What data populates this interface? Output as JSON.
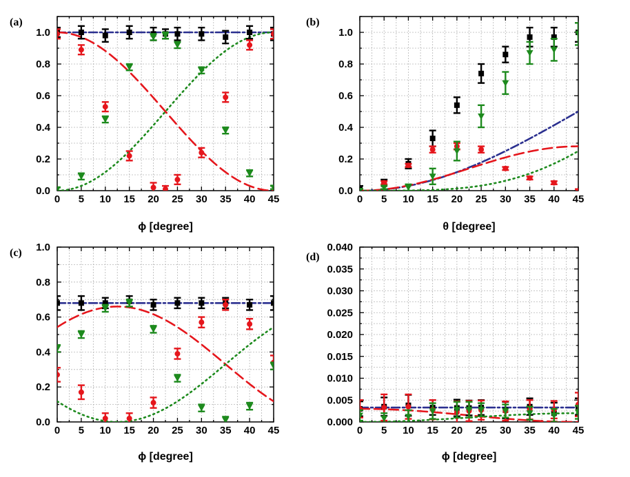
{
  "chart_data": [
    {
      "type": "line",
      "panel_label": "(a)",
      "xlabel": "ϕ [degree]",
      "ylabel": "",
      "xlim": [
        0,
        45
      ],
      "ylim": [
        0,
        1.1
      ],
      "xticks": [
        0,
        5,
        10,
        15,
        20,
        25,
        30,
        35,
        40,
        45
      ],
      "yticks": [
        0.0,
        0.2,
        0.4,
        0.6,
        0.8,
        1.0
      ],
      "ytick_labels": [
        "0.0",
        "0.2",
        "0.4",
        "0.6",
        "0.8",
        "1.0"
      ],
      "grid": true,
      "series": [
        {
          "name": "blue fit",
          "color": "#2a2f8f",
          "style": "dashdot",
          "kind": "curve",
          "func": "const",
          "a": 1.0
        },
        {
          "name": "black data",
          "color": "#000000",
          "marker": "square",
          "x": [
            0,
            5,
            10,
            15,
            20,
            22.5,
            25,
            30,
            35,
            40,
            45
          ],
          "y": [
            1.0,
            1.0,
            0.98,
            1.0,
            0.99,
            0.99,
            0.99,
            0.99,
            0.97,
            1.0,
            0.99
          ],
          "err": [
            0.03,
            0.04,
            0.04,
            0.04,
            0.04,
            0.03,
            0.04,
            0.04,
            0.04,
            0.04,
            0.04
          ]
        },
        {
          "name": "red fit",
          "color": "#e5161c",
          "style": "dash",
          "kind": "curve",
          "func": "cos2",
          "a": 1.0,
          "b": 0.0,
          "k": 4,
          "p": 0
        },
        {
          "name": "red data",
          "color": "#e5161c",
          "marker": "circle",
          "x": [
            0,
            5,
            10,
            15,
            20,
            22.5,
            25,
            30,
            35,
            40,
            45
          ],
          "y": [
            0.99,
            0.89,
            0.53,
            0.22,
            0.02,
            0.01,
            0.07,
            0.24,
            0.59,
            0.92,
            0.99
          ],
          "err": [
            0.03,
            0.03,
            0.03,
            0.03,
            0.03,
            0.02,
            0.03,
            0.03,
            0.03,
            0.03,
            0.03
          ]
        },
        {
          "name": "green fit",
          "color": "#1d8a1d",
          "style": "dot",
          "kind": "curve",
          "func": "sin2",
          "a": 1.0,
          "b": 0.0,
          "k": 4,
          "p": 0
        },
        {
          "name": "green data",
          "color": "#1d8a1d",
          "marker": "triangle-down",
          "x": [
            0,
            5,
            10,
            15,
            20,
            22.5,
            25,
            30,
            35,
            40,
            45
          ],
          "y": [
            0.01,
            0.09,
            0.45,
            0.78,
            0.97,
            0.98,
            0.92,
            0.76,
            0.38,
            0.11,
            0.02
          ],
          "err": [
            0.01,
            0.02,
            0.02,
            0.02,
            0.02,
            0.02,
            0.02,
            0.02,
            0.02,
            0.02,
            0.01
          ]
        }
      ]
    },
    {
      "type": "line",
      "panel_label": "(b)",
      "xlabel": "θ [degree]",
      "ylabel": "",
      "xlim": [
        0,
        45
      ],
      "ylim": [
        0,
        1.1
      ],
      "xticks": [
        0,
        5,
        10,
        15,
        20,
        25,
        30,
        35,
        40,
        45
      ],
      "yticks": [
        0.0,
        0.2,
        0.4,
        0.6,
        0.8,
        1.0
      ],
      "ytick_labels": [
        "0.0",
        "0.2",
        "0.4",
        "0.6",
        "0.8",
        "1.0"
      ],
      "grid": true,
      "series": [
        {
          "name": "blue fit",
          "color": "#2a2f8f",
          "style": "dashdot",
          "kind": "curve",
          "func": "sin2",
          "a": 1.0,
          "b": 0.0,
          "k": 2,
          "p": 0
        },
        {
          "name": "black data",
          "color": "#000000",
          "marker": "square",
          "x": [
            0,
            5,
            10,
            15,
            20,
            25,
            30,
            35,
            40,
            45
          ],
          "y": [
            0.01,
            0.04,
            0.17,
            0.33,
            0.54,
            0.74,
            0.86,
            0.97,
            0.97,
            1.0
          ],
          "err": [
            0.02,
            0.03,
            0.03,
            0.05,
            0.05,
            0.06,
            0.05,
            0.06,
            0.06,
            0.06
          ]
        },
        {
          "name": "red fit",
          "color": "#e5161c",
          "style": "dash",
          "kind": "curve",
          "func": "sin2",
          "a": 0.28,
          "b": 0.0,
          "k": 4,
          "p": 0
        },
        {
          "name": "red data",
          "color": "#e5161c",
          "marker": "circle",
          "x": [
            0,
            5,
            10,
            15,
            20,
            25,
            30,
            35,
            40,
            45
          ],
          "y": [
            0.0,
            0.05,
            0.16,
            0.26,
            0.28,
            0.26,
            0.14,
            0.08,
            0.05,
            0.0
          ],
          "err": [
            0.01,
            0.01,
            0.01,
            0.02,
            0.02,
            0.02,
            0.01,
            0.01,
            0.01,
            0.01
          ]
        },
        {
          "name": "green fit",
          "color": "#1d8a1d",
          "style": "dot",
          "kind": "curve",
          "func": "sin4",
          "a": 1.0,
          "b": 0.0,
          "k": 2,
          "p": 0
        },
        {
          "name": "green data",
          "color": "#1d8a1d",
          "marker": "triangle-down",
          "x": [
            0,
            5,
            10,
            15,
            20,
            25,
            30,
            35,
            40,
            45
          ],
          "y": [
            0.0,
            0.02,
            0.02,
            0.09,
            0.25,
            0.47,
            0.68,
            0.87,
            0.89,
            0.99
          ],
          "err": [
            0.01,
            0.01,
            0.02,
            0.05,
            0.06,
            0.07,
            0.07,
            0.07,
            0.07,
            0.07
          ]
        }
      ]
    },
    {
      "type": "line",
      "panel_label": "(c)",
      "xlabel": "ϕ [degree]",
      "ylabel": "",
      "xlim": [
        0,
        45
      ],
      "ylim": [
        0,
        1.0
      ],
      "xticks": [
        0,
        5,
        10,
        15,
        20,
        25,
        30,
        35,
        40,
        45
      ],
      "yticks": [
        0.0,
        0.2,
        0.4,
        0.6,
        0.8,
        1.0
      ],
      "ytick_labels": [
        "0.0",
        "0.2",
        "0.4",
        "0.6",
        "0.8",
        "1.0"
      ],
      "grid": true,
      "series": [
        {
          "name": "blue fit",
          "color": "#2a2f8f",
          "style": "dashdot",
          "kind": "curve",
          "func": "const",
          "a": 0.68
        },
        {
          "name": "black data",
          "color": "#000000",
          "marker": "square",
          "x": [
            0,
            5,
            10,
            15,
            20,
            25,
            30,
            35,
            40,
            45
          ],
          "y": [
            0.68,
            0.68,
            0.68,
            0.69,
            0.67,
            0.68,
            0.68,
            0.68,
            0.67,
            0.68
          ],
          "err": [
            0.04,
            0.04,
            0.03,
            0.03,
            0.03,
            0.03,
            0.03,
            0.03,
            0.03,
            0.04
          ]
        },
        {
          "name": "red fit",
          "color": "#e5161c",
          "style": "dash",
          "kind": "curve",
          "func": "cos2",
          "a": 0.66,
          "b": 0.0,
          "k": 4,
          "p": 12.5
        },
        {
          "name": "red data",
          "color": "#e5161c",
          "marker": "circle",
          "x": [
            0,
            5,
            10,
            15,
            20,
            25,
            30,
            35,
            40,
            45
          ],
          "y": [
            0.27,
            0.17,
            0.02,
            0.02,
            0.11,
            0.39,
            0.57,
            0.67,
            0.56,
            0.34
          ],
          "err": [
            0.04,
            0.04,
            0.03,
            0.03,
            0.03,
            0.03,
            0.03,
            0.03,
            0.03,
            0.04
          ]
        },
        {
          "name": "green fit",
          "color": "#1d8a1d",
          "style": "dot",
          "kind": "curve",
          "func": "sin2",
          "a": 0.66,
          "b": 0.0,
          "k": 4,
          "p": 12.5
        },
        {
          "name": "green data",
          "color": "#1d8a1d",
          "marker": "triangle-down",
          "x": [
            0,
            5,
            10,
            15,
            20,
            25,
            30,
            35,
            40,
            45
          ],
          "y": [
            0.42,
            0.5,
            0.65,
            0.68,
            0.53,
            0.25,
            0.08,
            0.01,
            0.09,
            0.32
          ],
          "err": [
            0.02,
            0.02,
            0.02,
            0.02,
            0.02,
            0.02,
            0.02,
            0.02,
            0.02,
            0.02
          ]
        }
      ]
    },
    {
      "type": "line",
      "panel_label": "(d)",
      "xlabel": "ϕ [degree]",
      "ylabel": "",
      "xlim": [
        0,
        45
      ],
      "ylim": [
        0,
        0.04
      ],
      "xticks": [
        0,
        5,
        10,
        15,
        20,
        25,
        30,
        35,
        40,
        45
      ],
      "yticks": [
        0.0,
        0.005,
        0.01,
        0.015,
        0.02,
        0.025,
        0.03,
        0.035,
        0.04
      ],
      "ytick_labels": [
        "0.000",
        "0.005",
        "0.010",
        "0.015",
        "0.020",
        "0.025",
        "0.030",
        "0.035",
        "0.040"
      ],
      "grid": true,
      "series": [
        {
          "name": "blue fit",
          "color": "#2a2f8f",
          "style": "dashdot",
          "kind": "curve",
          "func": "const",
          "a": 0.0033
        },
        {
          "name": "black data",
          "color": "#000000",
          "marker": "square",
          "x": [
            0,
            5,
            10,
            15,
            20,
            22.5,
            25,
            30,
            35,
            40,
            45
          ],
          "y": [
            0.003,
            0.0035,
            0.0038,
            0.0033,
            0.0032,
            0.0032,
            0.0033,
            0.0027,
            0.0035,
            0.002,
            0.0035
          ],
          "err": [
            0.0017,
            0.0021,
            0.0024,
            0.0017,
            0.0019,
            0.0017,
            0.0017,
            0.0019,
            0.0019,
            0.0024,
            0.0019
          ]
        },
        {
          "name": "red fit",
          "color": "#e5161c",
          "style": "dash",
          "kind": "curve",
          "func": "cos2",
          "a": 0.003,
          "b": 0.0,
          "k": 4,
          "p": 0
        },
        {
          "name": "red data",
          "color": "#e5161c",
          "marker": "circle",
          "x": [
            0,
            5,
            10,
            15,
            20,
            22.5,
            25,
            30,
            35,
            40,
            45
          ],
          "y": [
            0.003,
            0.0033,
            0.0035,
            0.0028,
            0.0022,
            0.0025,
            0.0027,
            0.0025,
            0.0028,
            0.0028,
            0.004
          ],
          "err": [
            0.002,
            0.003,
            0.0028,
            0.0022,
            0.0025,
            0.0023,
            0.0022,
            0.0022,
            0.0022,
            0.002,
            0.0027
          ]
        },
        {
          "name": "green fit",
          "color": "#1d8a1d",
          "style": "dot",
          "kind": "curve",
          "func": "sin2",
          "a": 0.002,
          "b": 0.0,
          "k": 4,
          "p": 0
        },
        {
          "name": "green data",
          "color": "#1d8a1d",
          "marker": "triangle-down",
          "x": [
            0,
            5,
            10,
            15,
            20,
            22.5,
            25,
            30,
            35,
            40,
            45
          ],
          "y": [
            0.0015,
            0.0008,
            0.0012,
            0.0025,
            0.0028,
            0.0028,
            0.0028,
            0.0025,
            0.002,
            0.0015,
            0.0022
          ],
          "err": [
            0.0012,
            0.0012,
            0.0015,
            0.0018,
            0.0018,
            0.0018,
            0.0015,
            0.0015,
            0.0015,
            0.0015,
            0.0015
          ]
        }
      ]
    }
  ]
}
